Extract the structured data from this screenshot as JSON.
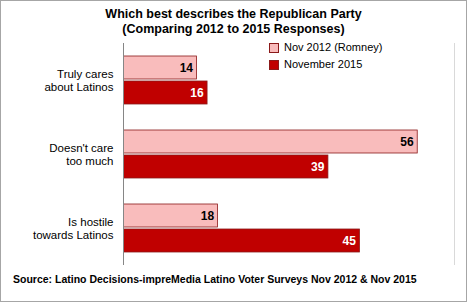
{
  "chart_data": {
    "type": "bar",
    "orientation": "horizontal",
    "title": "Which best describes the Republican Party",
    "subtitle": "(Comparing 2012 to 2015 Responses)",
    "caption": "Source: Latino Decisions-impreMedia Latino Voter Surveys Nov 2012 & Nov 2015",
    "categories": [
      "Truly cares about Latinos",
      "Doesn't care too much",
      "Is hostile towards Latinos"
    ],
    "series": [
      {
        "name": "Nov 2012 (Romney)",
        "color": "#f9bcbc",
        "values": [
          14,
          56,
          18
        ]
      },
      {
        "name": "November 2015",
        "color": "#c00000",
        "values": [
          16,
          39,
          45
        ]
      }
    ],
    "xlim": [
      0,
      63
    ],
    "xticks": [],
    "grid": false,
    "legend": "top right",
    "data_labels": true,
    "tick_labels": "y"
  }
}
